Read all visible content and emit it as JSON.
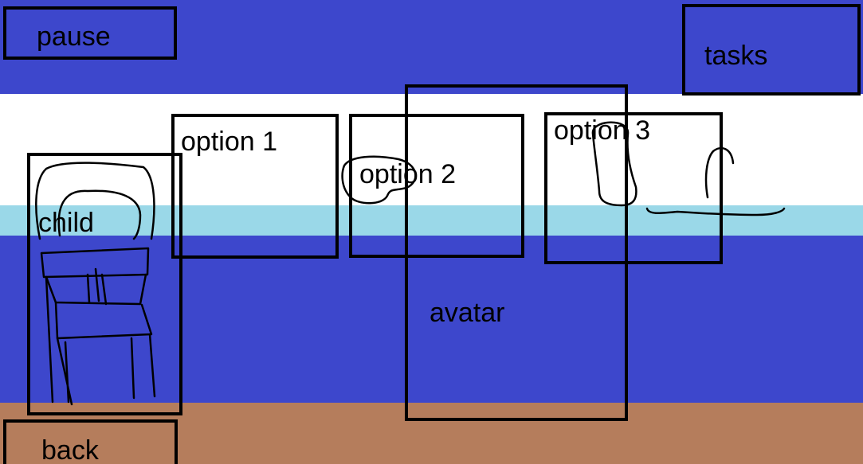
{
  "colors": {
    "sky": "#3d47cc",
    "floor": "#b57d5c",
    "light_band": "#9ad8e8",
    "wall": "#ffffff",
    "outline": "#000000"
  },
  "controls": {
    "pause_label": "pause",
    "tasks_label": "tasks",
    "back_label": "back"
  },
  "scene": {
    "child_label": "child",
    "avatar_label": "avatar",
    "options": [
      {
        "label": "option 1"
      },
      {
        "label": "option 2"
      },
      {
        "label": "option 3"
      }
    ]
  }
}
